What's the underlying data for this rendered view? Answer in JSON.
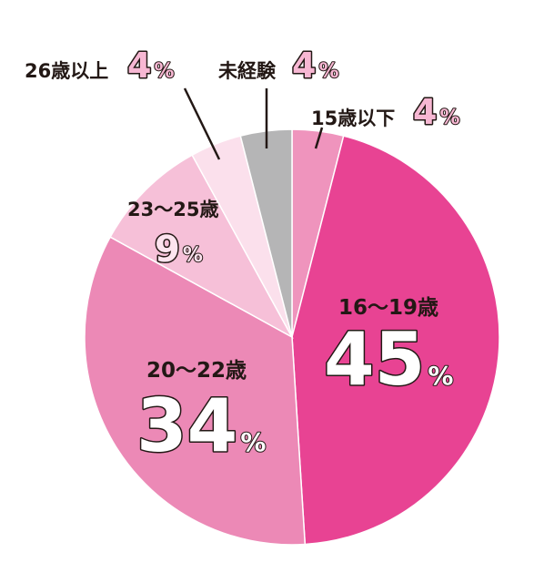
{
  "chart_data": {
    "type": "pie",
    "start": "top",
    "direction": "clockwise",
    "percent_sign": "%",
    "slices": [
      {
        "label": "15歳以下",
        "value": 4,
        "color": "#ef94bd",
        "text_color": "#f7b7d3"
      },
      {
        "label": "16〜19歳",
        "value": 45,
        "color": "#e84393",
        "text_color": "#ffffff"
      },
      {
        "label": "20〜22歳",
        "value": 34,
        "color": "#ec89b6",
        "text_color": "#ffffff"
      },
      {
        "label": "23〜25歳",
        "value": 9,
        "color": "#f6c0d8",
        "text_color": "#fde4ef"
      },
      {
        "label": "26歳以上",
        "value": 4,
        "color": "#fbe0ec",
        "text_color": "#f7b7d3"
      },
      {
        "label": "未経験",
        "value": 4,
        "color": "#b5b5b6",
        "text_color": "#f7b7d3"
      }
    ]
  }
}
